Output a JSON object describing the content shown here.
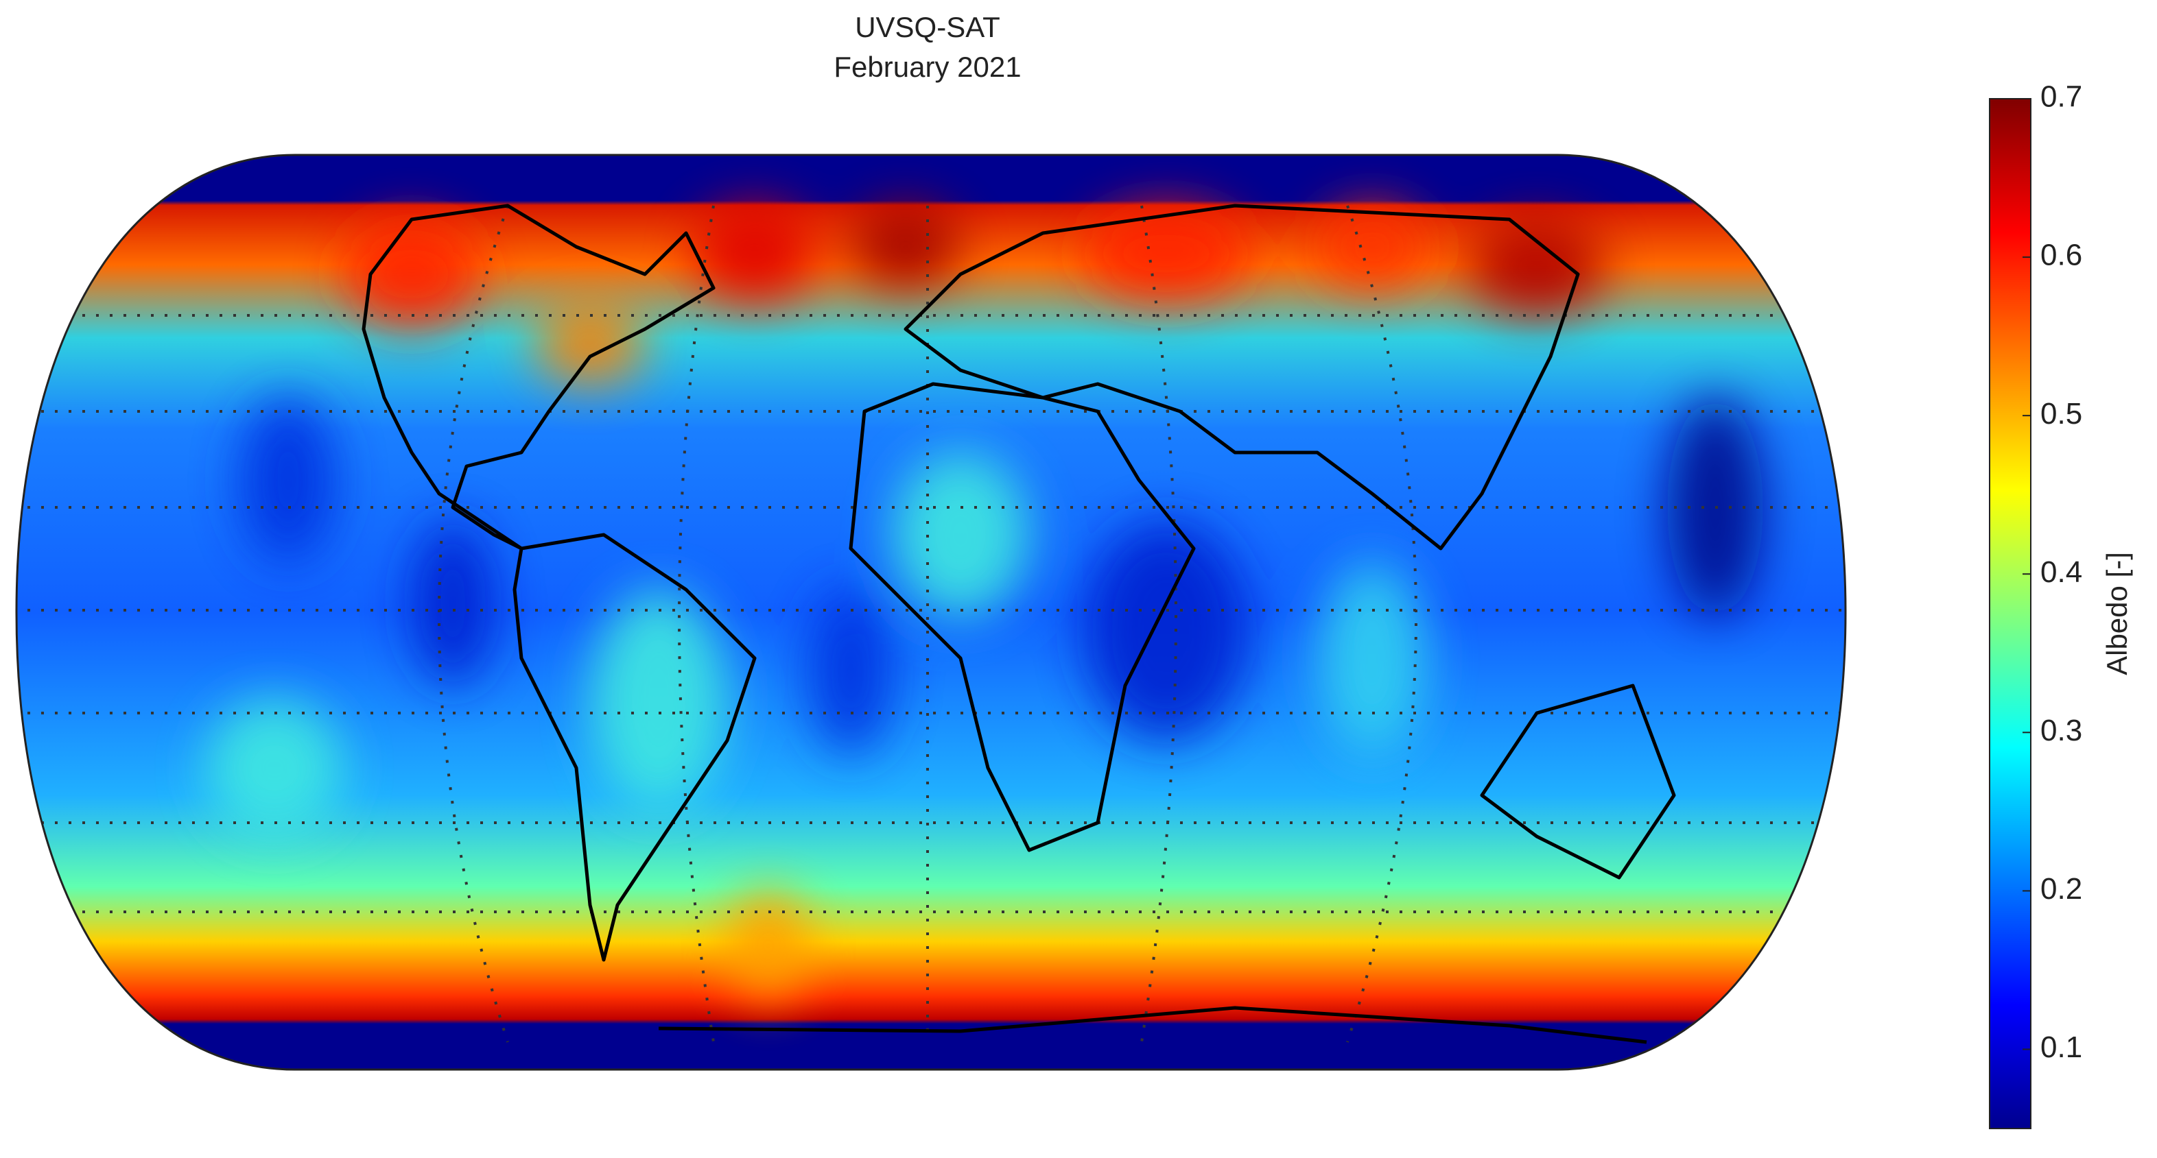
{
  "chart_data": {
    "type": "map",
    "title": "UVSQ-SAT",
    "subtitle": "February 2021",
    "colorbar": {
      "label": "Albedo [-]",
      "lim": [
        0.05,
        0.7
      ],
      "ticks": [
        0.1,
        0.2,
        0.3,
        0.4,
        0.5,
        0.6,
        0.7
      ]
    }
  }
}
